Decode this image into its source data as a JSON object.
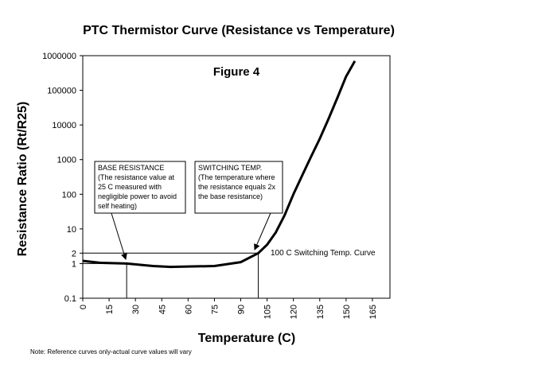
{
  "chart_data": {
    "type": "line",
    "title": "PTC  Thermistor Curve  (Resistance vs Temperature)",
    "x_label": "Temperature (C)",
    "y_label": "Resistance Ratio (Rt/R25)",
    "figure_label": "Figure  4",
    "curve_label": "100 C Switching Temp. Curve",
    "note": "Note: Reference curves only-actual curve values will vary",
    "x": [
      0,
      10,
      25,
      40,
      50,
      60,
      75,
      90,
      100,
      105,
      110,
      115,
      120,
      125,
      130,
      135,
      140,
      145,
      150,
      155
    ],
    "series": [
      {
        "name": "100 C Switching Temp. Curve",
        "color": "#000000",
        "values": [
          1.2,
          1.05,
          1.0,
          0.85,
          0.8,
          0.82,
          0.85,
          1.1,
          2,
          3.5,
          8,
          25,
          100,
          350,
          1200,
          4000,
          15000,
          60000,
          250000,
          700000
        ]
      }
    ],
    "xlim": [
      0,
      175
    ],
    "xticks": [
      0,
      15,
      30,
      45,
      60,
      75,
      90,
      105,
      120,
      135,
      150,
      165
    ],
    "ylim": [
      0.1,
      1000000
    ],
    "yticks": [
      0.1,
      1,
      2,
      10,
      100,
      1000,
      10000,
      100000,
      1000000
    ],
    "y_scale": "log",
    "reference_points": [
      {
        "x": 25,
        "y": 1
      },
      {
        "x": 100,
        "y": 2
      }
    ],
    "annotations": [
      {
        "lines": [
          "BASE RESISTANCE",
          "(The resistance value at",
          "25 C measured with",
          "negligible power to avoid",
          "self heating)"
        ]
      },
      {
        "lines": [
          "SWITCHING TEMP.",
          "(The temperature where",
          "the resistance equals 2x",
          "the base resistance)"
        ]
      }
    ]
  }
}
